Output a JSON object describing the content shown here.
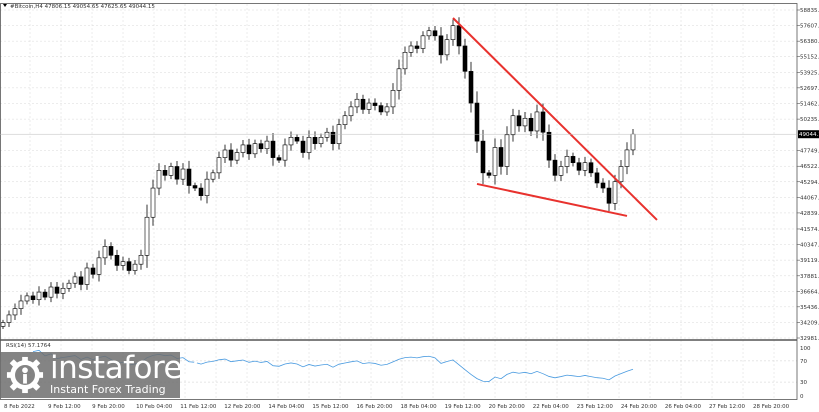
{
  "chart_data": {
    "type": "candlestick",
    "title": "#Bitcoin,H4 47806.15 49054.65 47625.65 49044.15",
    "symbol": "#Bitcoin,H4",
    "ohlc_last": {
      "open": "47806.15",
      "high": "49054.65",
      "low": "47625.65",
      "close": "49044.15"
    },
    "current_price_label": "49044.15",
    "ylim": [
      32981.5,
      58835.1
    ],
    "y_ticks": [
      "58835.10",
      "57607.90",
      "56380.30",
      "55152.70",
      "53925.10",
      "52697.50",
      "51462.70",
      "50235.10",
      "47749.90",
      "46522.30",
      "45294.70",
      "44067.10",
      "42839.50",
      "41574.70",
      "40347.10",
      "39119.50",
      "37881.90",
      "36664.30",
      "35436.70",
      "34209.10",
      "32981.50"
    ],
    "x_ticks": [
      "8 Feb 2022",
      "9 Feb 12:00",
      "9 Feb 20:00",
      "10 Feb 04:00",
      "11 Feb 12:00",
      "12 Feb 20:00",
      "14 Feb 04:00",
      "15 Feb 12:00",
      "16 Feb 20:00",
      "18 Feb 04:00",
      "19 Feb 12:00",
      "20 Feb 20:00",
      "22 Feb 04:00",
      "23 Feb 12:00",
      "24 Feb 20:00",
      "26 Feb 04:00",
      "27 Feb 12:00",
      "28 Feb 20:00"
    ],
    "closes": [
      34200,
      34800,
      35300,
      35900,
      36300,
      36000,
      36600,
      36200,
      37000,
      36500,
      36900,
      37300,
      37800,
      37200,
      38500,
      38000,
      39300,
      40200,
      39500,
      38700,
      39000,
      38300,
      38800,
      39500,
      42500,
      44800,
      46200,
      45800,
      46500,
      45500,
      46300,
      45000,
      44800,
      44200,
      45500,
      46000,
      47200,
      47800,
      47000,
      47600,
      48200,
      47500,
      48300,
      47900,
      48500,
      47200,
      47000,
      48200,
      48800,
      48500,
      47600,
      48800,
      48300,
      48800,
      49200,
      48300,
      49800,
      50500,
      51200,
      51800,
      51000,
      51500,
      51300,
      50800,
      51200,
      52500,
      54200,
      55500,
      56000,
      55800,
      56800,
      57200,
      56800,
      55300,
      56500,
      57600,
      56000,
      54000,
      51500,
      48500,
      46000,
      45800,
      48000,
      46500,
      49000,
      50500,
      49700,
      50300,
      49300,
      50800,
      49200,
      47000,
      45800,
      46500,
      47300,
      46800,
      46200,
      46800,
      46000,
      45200,
      44800,
      43600,
      45300,
      46500,
      47806.15,
      49044.15
    ],
    "trendlines": [
      {
        "from": {
          "candle": 75,
          "price": 58205
        },
        "to": {
          "candle": 109,
          "price": 42287
        },
        "color": "#e8322e"
      },
      {
        "from": {
          "candle": 79,
          "price": 45124
        },
        "to": {
          "candle": 104,
          "price": 42602
        },
        "color": "#e8322e"
      }
    ],
    "candle_colors": {
      "up": "#ffffff",
      "down": "#000000",
      "outline": "#000000"
    },
    "grid": true,
    "indicator": {
      "name": "RSI(14) 57.1764",
      "ylim": [
        0,
        100
      ],
      "y_ticks": [
        "100",
        "70",
        "30",
        "0"
      ],
      "color": "#4a9be0"
    }
  },
  "watermark": {
    "brand": "instaforex",
    "tagline": "Instant Forex Trading"
  }
}
